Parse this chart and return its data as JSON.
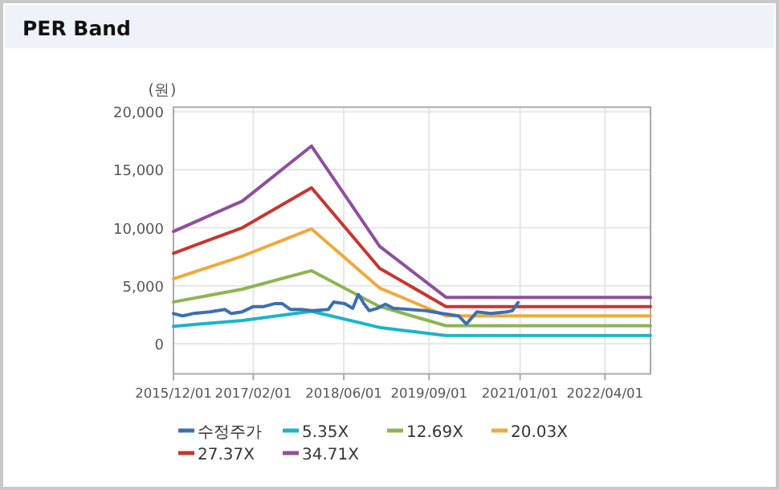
{
  "chart_data": {
    "type": "line",
    "title": "PER Band",
    "ylabel": "(원)",
    "xlim": [
      "2015-12-01",
      "2022-12-01"
    ],
    "ylim": [
      -2600,
      20400
    ],
    "xticks": [
      {
        "value": "2015-12-01",
        "label": "2015/12/01"
      },
      {
        "value": "2017-02-01",
        "label": "2017/02/01"
      },
      {
        "value": "2018-06-01",
        "label": "2018/06/01"
      },
      {
        "value": "2019-09-01",
        "label": "2019/09/01"
      },
      {
        "value": "2021-01-01",
        "label": "2021/01/01"
      },
      {
        "value": "2022-04-01",
        "label": "2022/04/01"
      }
    ],
    "yticks": [
      {
        "value": 0,
        "label": "0"
      },
      {
        "value": 5000,
        "label": "5,000"
      },
      {
        "value": 10000,
        "label": "10,000"
      },
      {
        "value": 15000,
        "label": "15,000"
      },
      {
        "value": 20000,
        "label": "20,000"
      }
    ],
    "grid": true,
    "legend": "bottom",
    "marker": "none",
    "line_style": "solid",
    "series": [
      {
        "name": "수정주가",
        "color": "#3d6fb0",
        "x": [
          "2015-12-01",
          "2016-01-19",
          "2016-03-15",
          "2016-06-13",
          "2016-09-01",
          "2016-10-06",
          "2016-12-04",
          "2017-02-01",
          "2017-03-28",
          "2017-05-25",
          "2017-07-07",
          "2017-08-20",
          "2017-10-18",
          "2017-12-15",
          "2018-03-10",
          "2018-04-08",
          "2018-06-06",
          "2018-07-19",
          "2018-08-18",
          "2018-09-15",
          "2018-10-15",
          "2018-11-27",
          "2019-01-10",
          "2019-02-22",
          "2019-05-18",
          "2019-08-15",
          "2019-11-10",
          "2020-02-06",
          "2020-03-19",
          "2020-05-15",
          "2020-07-27",
          "2020-10-22",
          "2020-11-21",
          "2020-12-21"
        ],
        "values": [
          2600,
          2400,
          2600,
          2750,
          2950,
          2600,
          2750,
          3200,
          3200,
          3450,
          3450,
          2950,
          2950,
          2850,
          2950,
          3600,
          3450,
          3050,
          4250,
          3500,
          2850,
          3050,
          3400,
          3050,
          2950,
          2850,
          2600,
          2400,
          1700,
          2750,
          2600,
          2750,
          2850,
          3550
        ]
      },
      {
        "name": "5.35X",
        "color": "#1ab5c8",
        "x": [
          "2015-12-01",
          "2016-12-04",
          "2017-12-10",
          "2018-12-10",
          "2019-12-01",
          "2022-12-01"
        ],
        "values": [
          1500,
          2000,
          2800,
          1400,
          700,
          700
        ]
      },
      {
        "name": "12.69X",
        "color": "#8db452",
        "x": [
          "2015-12-01",
          "2016-12-04",
          "2017-12-10",
          "2018-12-10",
          "2019-12-01",
          "2022-12-01"
        ],
        "values": [
          3600,
          4700,
          6300,
          3200,
          1550,
          1550
        ]
      },
      {
        "name": "20.03X",
        "color": "#f0a93c",
        "x": [
          "2015-12-01",
          "2016-12-04",
          "2017-12-10",
          "2018-12-10",
          "2019-12-01",
          "2022-12-01"
        ],
        "values": [
          5600,
          7550,
          9900,
          4800,
          2400,
          2400
        ]
      },
      {
        "name": "27.37X",
        "color": "#c8352f",
        "x": [
          "2015-12-01",
          "2016-12-04",
          "2017-12-10",
          "2018-12-10",
          "2019-12-01",
          "2022-12-01"
        ],
        "values": [
          7800,
          10000,
          13450,
          6500,
          3200,
          3200
        ]
      },
      {
        "name": "34.71X",
        "color": "#8e4f9e",
        "x": [
          "2015-12-01",
          "2016-12-04",
          "2017-12-10",
          "2018-12-10",
          "2019-12-01",
          "2022-12-01"
        ],
        "values": [
          9680,
          12300,
          17050,
          8400,
          4000,
          4000
        ]
      }
    ]
  }
}
